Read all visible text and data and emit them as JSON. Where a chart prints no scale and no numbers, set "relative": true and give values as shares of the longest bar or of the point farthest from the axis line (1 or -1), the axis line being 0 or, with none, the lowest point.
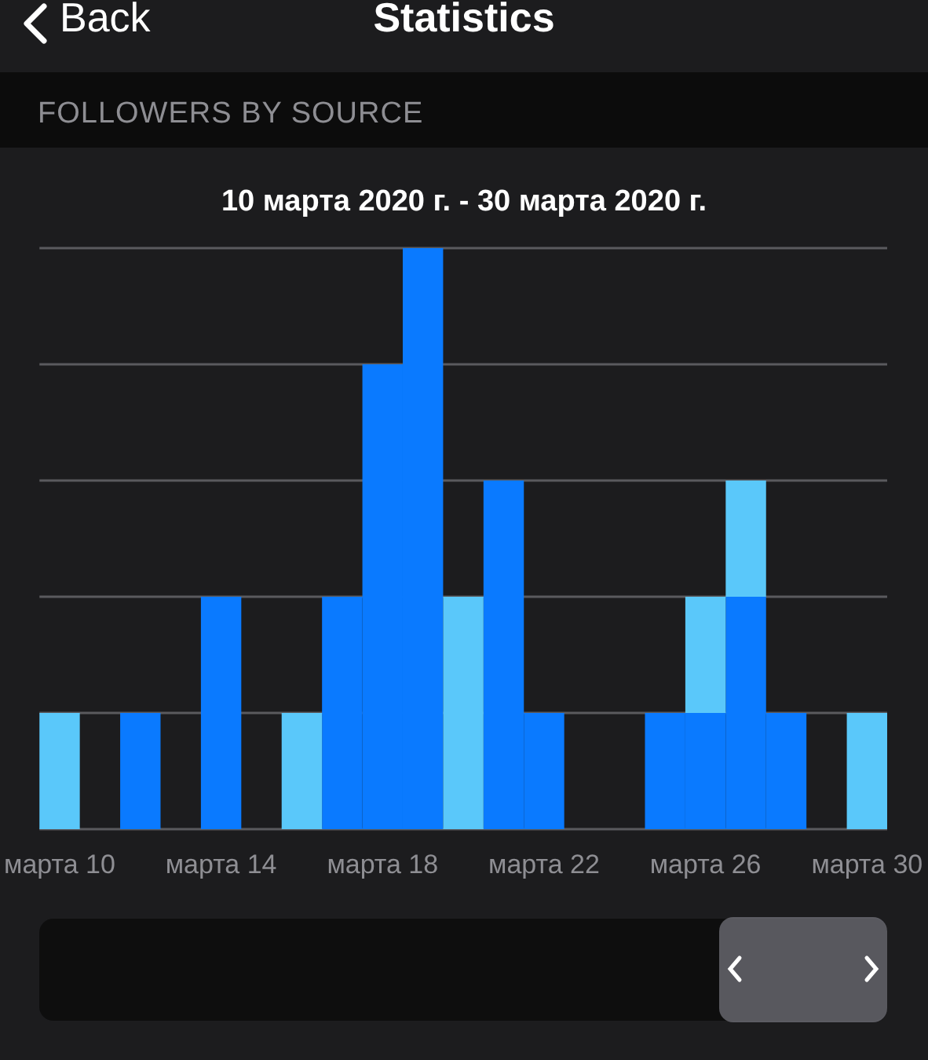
{
  "chart_data": {
    "type": "bar",
    "title": "FOLLOWERS BY SOURCE",
    "subtitle": "10 марта 2020 г. - 30 марта 2020 г.",
    "annotations": [
      "Back",
      "Statistics"
    ],
    "categories": [
      "марта 10",
      null,
      null,
      null,
      "марта 14",
      null,
      null,
      null,
      "марта 18",
      null,
      null,
      null,
      "марта 22",
      null,
      null,
      null,
      "марта 26",
      null,
      null,
      null,
      "марта 30"
    ],
    "stacked": true,
    "relative": true,
    "grid": "y",
    "series": [
      {
        "color": "#0a7aff",
        "values": [
          0,
          0,
          0.2,
          0,
          0.4,
          0,
          0,
          0.4,
          0.8,
          1,
          0,
          0.6,
          0.2,
          0,
          0,
          0.2,
          0.2,
          0.4,
          0.2,
          0,
          0
        ]
      },
      {
        "color": "#5ac8fa",
        "values": [
          0.2,
          0,
          0,
          0,
          0,
          0,
          0.2,
          0,
          0,
          0,
          0.4,
          0,
          0,
          0,
          0,
          0,
          0.2,
          0.2,
          0,
          0,
          0.2
        ]
      }
    ]
  }
}
